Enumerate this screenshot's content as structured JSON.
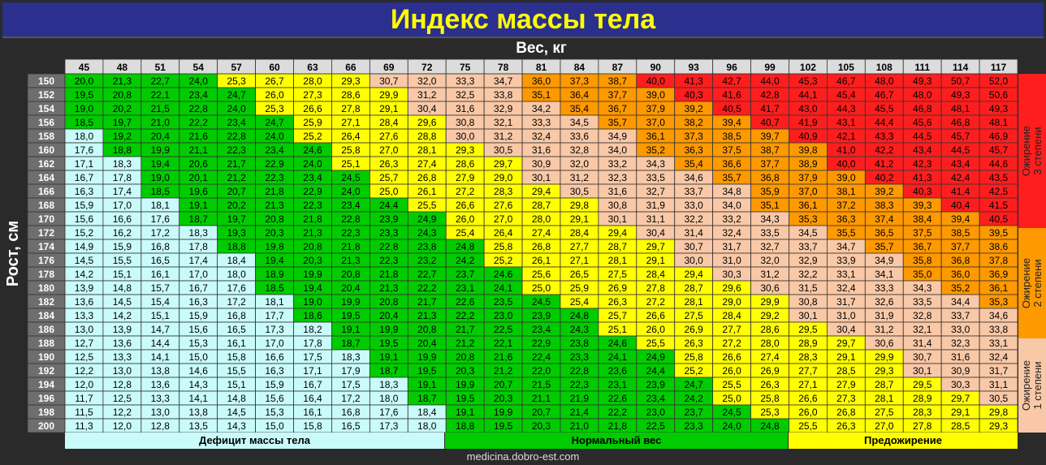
{
  "title": "Индекс массы тела",
  "source": "medicina.dobro-est.com",
  "colors": {
    "background": "#2a2a2a",
    "title_bg": "#2b2f8e",
    "title_text": "#ffff00",
    "deficit": "#c9fbfb",
    "normal": "#00cc00",
    "overweight": "#ffff00",
    "obesity1": "#f9c8a6",
    "obesity2": "#ff9900",
    "obesity3": "#ff1e1e"
  },
  "legend": {
    "deficit": "Дефицит массы тела",
    "normal": "Нормальный вес",
    "overweight": "Предожирение",
    "obesity3": "Ожирение\n3 степени",
    "obesity2": "Ожирение\n2 степени",
    "obesity1": "Ожирение\n1 степени"
  },
  "chart_data": {
    "type": "table",
    "title": "Индекс массы тела",
    "xlabel": "Вес, кг",
    "ylabel": "Рост, см",
    "weights": [
      45,
      48,
      51,
      54,
      57,
      60,
      63,
      66,
      69,
      72,
      75,
      78,
      81,
      84,
      87,
      90,
      93,
      96,
      99,
      102,
      105,
      108,
      111,
      114,
      117
    ],
    "heights": [
      150,
      152,
      154,
      156,
      158,
      160,
      162,
      164,
      166,
      168,
      170,
      172,
      174,
      176,
      178,
      180,
      182,
      184,
      186,
      188,
      190,
      192,
      194,
      196,
      198,
      200
    ],
    "bmi": [
      [
        "20,0",
        "21,3",
        "22,7",
        "24,0",
        "25,3",
        "26,7",
        "28,0",
        "29,3",
        "30,7",
        "32,0",
        "33,3",
        "34,7",
        "36,0",
        "37,3",
        "38,7",
        "40,0",
        "41,3",
        "42,7",
        "44,0",
        "45,3",
        "46,7",
        "48,0",
        "49,3",
        "50,7",
        "52,0"
      ],
      [
        "19,5",
        "20,8",
        "22,1",
        "23,4",
        "24,7",
        "26,0",
        "27,3",
        "28,6",
        "29,9",
        "31,2",
        "32,5",
        "33,8",
        "35,1",
        "36,4",
        "37,7",
        "39,0",
        "40,3",
        "41,6",
        "42,8",
        "44,1",
        "45,4",
        "46,7",
        "48,0",
        "49,3",
        "50,6"
      ],
      [
        "19,0",
        "20,2",
        "21,5",
        "22,8",
        "24,0",
        "25,3",
        "26,6",
        "27,8",
        "29,1",
        "30,4",
        "31,6",
        "32,9",
        "34,2",
        "35,4",
        "36,7",
        "37,9",
        "39,2",
        "40,5",
        "41,7",
        "43,0",
        "44,3",
        "45,5",
        "46,8",
        "48,1",
        "49,3"
      ],
      [
        "18,5",
        "19,7",
        "21,0",
        "22,2",
        "23,4",
        "24,7",
        "25,9",
        "27,1",
        "28,4",
        "29,6",
        "30,8",
        "32,1",
        "33,3",
        "34,5",
        "35,7",
        "37,0",
        "38,2",
        "39,4",
        "40,7",
        "41,9",
        "43,1",
        "44,4",
        "45,6",
        "46,8",
        "48,1"
      ],
      [
        "18,0",
        "19,2",
        "20,4",
        "21,6",
        "22,8",
        "24,0",
        "25,2",
        "26,4",
        "27,6",
        "28,8",
        "30,0",
        "31,2",
        "32,4",
        "33,6",
        "34,9",
        "36,1",
        "37,3",
        "38,5",
        "39,7",
        "40,9",
        "42,1",
        "43,3",
        "44,5",
        "45,7",
        "46,9"
      ],
      [
        "17,6",
        "18,8",
        "19,9",
        "21,1",
        "22,3",
        "23,4",
        "24,6",
        "25,8",
        "27,0",
        "28,1",
        "29,3",
        "30,5",
        "31,6",
        "32,8",
        "34,0",
        "35,2",
        "36,3",
        "37,5",
        "38,7",
        "39,8",
        "41,0",
        "42,2",
        "43,4",
        "44,5",
        "45,7"
      ],
      [
        "17,1",
        "18,3",
        "19,4",
        "20,6",
        "21,7",
        "22,9",
        "24,0",
        "25,1",
        "26,3",
        "27,4",
        "28,6",
        "29,7",
        "30,9",
        "32,0",
        "33,2",
        "34,3",
        "35,4",
        "36,6",
        "37,7",
        "38,9",
        "40,0",
        "41,2",
        "42,3",
        "43,4",
        "44,6"
      ],
      [
        "16,7",
        "17,8",
        "19,0",
        "20,1",
        "21,2",
        "22,3",
        "23,4",
        "24,5",
        "25,7",
        "26,8",
        "27,9",
        "29,0",
        "30,1",
        "31,2",
        "32,3",
        "33,5",
        "34,6",
        "35,7",
        "36,8",
        "37,9",
        "39,0",
        "40,2",
        "41,3",
        "42,4",
        "43,5"
      ],
      [
        "16,3",
        "17,4",
        "18,5",
        "19,6",
        "20,7",
        "21,8",
        "22,9",
        "24,0",
        "25,0",
        "26,1",
        "27,2",
        "28,3",
        "29,4",
        "30,5",
        "31,6",
        "32,7",
        "33,7",
        "34,8",
        "35,9",
        "37,0",
        "38,1",
        "39,2",
        "40,3",
        "41,4",
        "42,5"
      ],
      [
        "15,9",
        "17,0",
        "18,1",
        "19,1",
        "20,2",
        "21,3",
        "22,3",
        "23,4",
        "24,4",
        "25,5",
        "26,6",
        "27,6",
        "28,7",
        "29,8",
        "30,8",
        "31,9",
        "33,0",
        "34,0",
        "35,1",
        "36,1",
        "37,2",
        "38,3",
        "39,3",
        "40,4",
        "41,5"
      ],
      [
        "15,6",
        "16,6",
        "17,6",
        "18,7",
        "19,7",
        "20,8",
        "21,8",
        "22,8",
        "23,9",
        "24,9",
        "26,0",
        "27,0",
        "28,0",
        "29,1",
        "30,1",
        "31,1",
        "32,2",
        "33,2",
        "34,3",
        "35,3",
        "36,3",
        "37,4",
        "38,4",
        "39,4",
        "40,5"
      ],
      [
        "15,2",
        "16,2",
        "17,2",
        "18,3",
        "19,3",
        "20,3",
        "21,3",
        "22,3",
        "23,3",
        "24,3",
        "25,4",
        "26,4",
        "27,4",
        "28,4",
        "29,4",
        "30,4",
        "31,4",
        "32,4",
        "33,5",
        "34,5",
        "35,5",
        "36,5",
        "37,5",
        "38,5",
        "39,5"
      ],
      [
        "14,9",
        "15,9",
        "16,8",
        "17,8",
        "18,8",
        "19,8",
        "20,8",
        "21,8",
        "22,8",
        "23,8",
        "24,8",
        "25,8",
        "26,8",
        "27,7",
        "28,7",
        "29,7",
        "30,7",
        "31,7",
        "32,7",
        "33,7",
        "34,7",
        "35,7",
        "36,7",
        "37,7",
        "38,6"
      ],
      [
        "14,5",
        "15,5",
        "16,5",
        "17,4",
        "18,4",
        "19,4",
        "20,3",
        "21,3",
        "22,3",
        "23,2",
        "24,2",
        "25,2",
        "26,1",
        "27,1",
        "28,1",
        "29,1",
        "30,0",
        "31,0",
        "32,0",
        "32,9",
        "33,9",
        "34,9",
        "35,8",
        "36,8",
        "37,8"
      ],
      [
        "14,2",
        "15,1",
        "16,1",
        "17,0",
        "18,0",
        "18,9",
        "19,9",
        "20,8",
        "21,8",
        "22,7",
        "23,7",
        "24,6",
        "25,6",
        "26,5",
        "27,5",
        "28,4",
        "29,4",
        "30,3",
        "31,2",
        "32,2",
        "33,1",
        "34,1",
        "35,0",
        "36,0",
        "36,9"
      ],
      [
        "13,9",
        "14,8",
        "15,7",
        "16,7",
        "17,6",
        "18,5",
        "19,4",
        "20,4",
        "21,3",
        "22,2",
        "23,1",
        "24,1",
        "25,0",
        "25,9",
        "26,9",
        "27,8",
        "28,7",
        "29,6",
        "30,6",
        "31,5",
        "32,4",
        "33,3",
        "34,3",
        "35,2",
        "36,1"
      ],
      [
        "13,6",
        "14,5",
        "15,4",
        "16,3",
        "17,2",
        "18,1",
        "19,0",
        "19,9",
        "20,8",
        "21,7",
        "22,6",
        "23,5",
        "24,5",
        "25,4",
        "26,3",
        "27,2",
        "28,1",
        "29,0",
        "29,9",
        "30,8",
        "31,7",
        "32,6",
        "33,5",
        "34,4",
        "35,3"
      ],
      [
        "13,3",
        "14,2",
        "15,1",
        "15,9",
        "16,8",
        "17,7",
        "18,6",
        "19,5",
        "20,4",
        "21,3",
        "22,2",
        "23,0",
        "23,9",
        "24,8",
        "25,7",
        "26,6",
        "27,5",
        "28,4",
        "29,2",
        "30,1",
        "31,0",
        "31,9",
        "32,8",
        "33,7",
        "34,6"
      ],
      [
        "13,0",
        "13,9",
        "14,7",
        "15,6",
        "16,5",
        "17,3",
        "18,2",
        "19,1",
        "19,9",
        "20,8",
        "21,7",
        "22,5",
        "23,4",
        "24,3",
        "25,1",
        "26,0",
        "26,9",
        "27,7",
        "28,6",
        "29,5",
        "30,4",
        "31,2",
        "32,1",
        "33,0",
        "33,8"
      ],
      [
        "12,7",
        "13,6",
        "14,4",
        "15,3",
        "16,1",
        "17,0",
        "17,8",
        "18,7",
        "19,5",
        "20,4",
        "21,2",
        "22,1",
        "22,9",
        "23,8",
        "24,6",
        "25,5",
        "26,3",
        "27,2",
        "28,0",
        "28,9",
        "29,7",
        "30,6",
        "31,4",
        "32,3",
        "33,1"
      ],
      [
        "12,5",
        "13,3",
        "14,1",
        "15,0",
        "15,8",
        "16,6",
        "17,5",
        "18,3",
        "19,1",
        "19,9",
        "20,8",
        "21,6",
        "22,4",
        "23,3",
        "24,1",
        "24,9",
        "25,8",
        "26,6",
        "27,4",
        "28,3",
        "29,1",
        "29,9",
        "30,7",
        "31,6",
        "32,4"
      ],
      [
        "12,2",
        "13,0",
        "13,8",
        "14,6",
        "15,5",
        "16,3",
        "17,1",
        "17,9",
        "18,7",
        "19,5",
        "20,3",
        "21,2",
        "22,0",
        "22,8",
        "23,6",
        "24,4",
        "25,2",
        "26,0",
        "26,9",
        "27,7",
        "28,5",
        "29,3",
        "30,1",
        "30,9",
        "31,7"
      ],
      [
        "12,0",
        "12,8",
        "13,6",
        "14,3",
        "15,1",
        "15,9",
        "16,7",
        "17,5",
        "18,3",
        "19,1",
        "19,9",
        "20,7",
        "21,5",
        "22,3",
        "23,1",
        "23,9",
        "24,7",
        "25,5",
        "26,3",
        "27,1",
        "27,9",
        "28,7",
        "29,5",
        "30,3",
        "31,1"
      ],
      [
        "11,7",
        "12,5",
        "13,3",
        "14,1",
        "14,8",
        "15,6",
        "16,4",
        "17,2",
        "18,0",
        "18,7",
        "19,5",
        "20,3",
        "21,1",
        "21,9",
        "22,6",
        "23,4",
        "24,2",
        "25,0",
        "25,8",
        "26,6",
        "27,3",
        "28,1",
        "28,9",
        "29,7",
        "30,5"
      ],
      [
        "11,5",
        "12,2",
        "13,0",
        "13,8",
        "14,5",
        "15,3",
        "16,1",
        "16,8",
        "17,6",
        "18,4",
        "19,1",
        "19,9",
        "20,7",
        "21,4",
        "22,2",
        "23,0",
        "23,7",
        "24,5",
        "25,3",
        "26,0",
        "26,8",
        "27,5",
        "28,3",
        "29,1",
        "29,8"
      ],
      [
        "11,3",
        "12,0",
        "12,8",
        "13,5",
        "14,3",
        "15,0",
        "15,8",
        "16,5",
        "17,3",
        "18,0",
        "18,8",
        "19,5",
        "20,3",
        "21,0",
        "21,8",
        "22,5",
        "23,3",
        "24,0",
        "24,8",
        "25,5",
        "26,3",
        "27,0",
        "27,8",
        "28,5",
        "29,3"
      ]
    ]
  }
}
